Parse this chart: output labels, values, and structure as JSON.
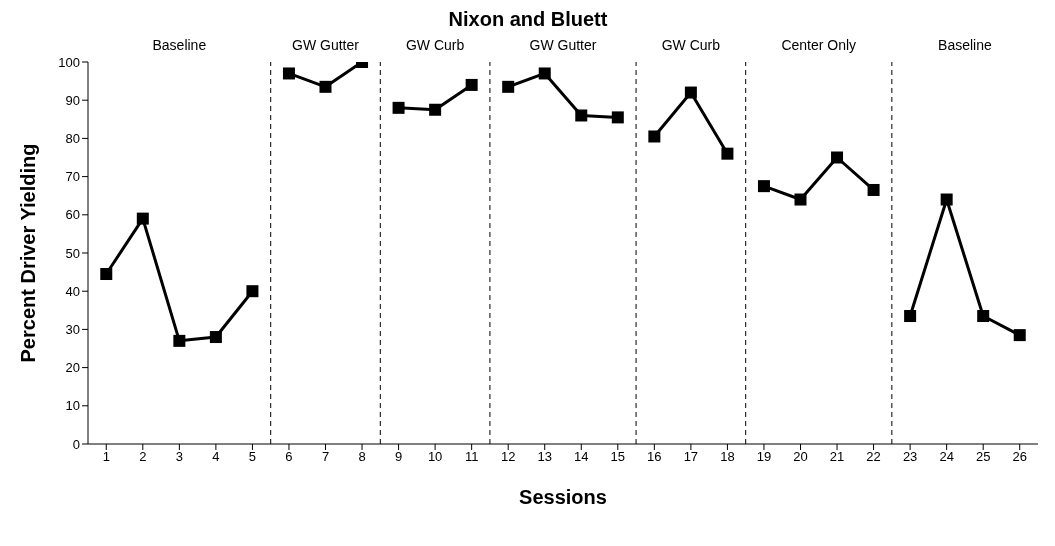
{
  "chart_data": {
    "type": "line",
    "title": "Nixon and Bluett",
    "xlabel": "Sessions",
    "ylabel": "Percent Driver Yielding",
    "series": [
      {
        "color": "#000000",
        "x": [
          1,
          2,
          3,
          4,
          5
        ],
        "values": [
          44.5,
          59,
          27,
          28,
          40
        ]
      },
      {
        "color": "#000000",
        "x": [
          6,
          7,
          8
        ],
        "values": [
          97,
          93.5,
          100
        ]
      },
      {
        "color": "#000000",
        "x": [
          9,
          10,
          11
        ],
        "values": [
          88,
          87.5,
          94
        ]
      },
      {
        "color": "#000000",
        "x": [
          12,
          13,
          14,
          15
        ],
        "values": [
          93.5,
          97,
          86,
          85.5
        ]
      },
      {
        "color": "#000000",
        "x": [
          16,
          17,
          18
        ],
        "values": [
          80.5,
          92,
          76
        ]
      },
      {
        "color": "#000000",
        "x": [
          19,
          20,
          21,
          22
        ],
        "values": [
          67.5,
          64,
          75,
          66.5
        ]
      },
      {
        "color": "#000000",
        "x": [
          23,
          24,
          25,
          26
        ],
        "values": [
          33.5,
          64,
          33.5,
          28.5
        ]
      }
    ],
    "xlim": [
      0.5,
      26.5
    ],
    "xticks": [
      1,
      2,
      3,
      4,
      5,
      6,
      7,
      8,
      9,
      10,
      11,
      12,
      13,
      14,
      15,
      16,
      17,
      18,
      19,
      20,
      21,
      22,
      23,
      24,
      25,
      26
    ],
    "ylim": [
      0,
      100
    ],
    "yticks": [
      0,
      10,
      20,
      30,
      40,
      50,
      60,
      70,
      80,
      90,
      100
    ],
    "ref_lines": [
      {
        "axis": "x",
        "value": 5.5,
        "line_style": "dashed",
        "color": "#000000"
      },
      {
        "axis": "x",
        "value": 8.5,
        "line_style": "dashed",
        "color": "#000000"
      },
      {
        "axis": "x",
        "value": 11.5,
        "line_style": "dashed",
        "color": "#000000"
      },
      {
        "axis": "x",
        "value": 15.5,
        "line_style": "dashed",
        "color": "#000000"
      },
      {
        "axis": "x",
        "value": 18.5,
        "line_style": "dashed",
        "color": "#000000"
      },
      {
        "axis": "x",
        "value": 22.5,
        "line_style": "dashed",
        "color": "#000000"
      }
    ],
    "annotations": [
      "Baseline",
      "GW Gutter",
      "GW Curb",
      "GW Gutter",
      "GW Curb",
      "Center Only",
      "Baseline"
    ],
    "grid": false,
    "marker": "square",
    "line_style": "solid"
  }
}
